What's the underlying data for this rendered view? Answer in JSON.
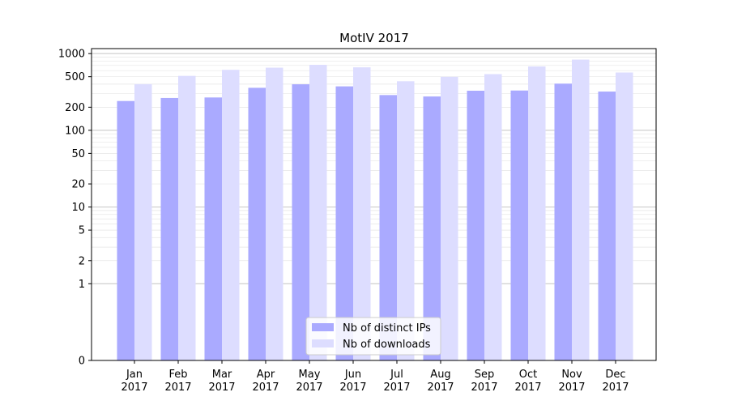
{
  "chart_data": {
    "type": "bar",
    "title": "MotIV 2017",
    "xlabel": "",
    "ylabel": "",
    "y_scale": "symlog",
    "y_ticks": [
      0,
      1,
      2,
      5,
      10,
      20,
      50,
      100,
      200,
      500,
      1000
    ],
    "y_tick_labels": [
      "0",
      "1",
      "2",
      "5",
      "10",
      "20",
      "50",
      "100",
      "200",
      "500",
      "1000"
    ],
    "categories": [
      "Jan\n2017",
      "Feb\n2017",
      "Mar\n2017",
      "Apr\n2017",
      "May\n2017",
      "Jun\n2017",
      "Jul\n2017",
      "Aug\n2017",
      "Sep\n2017",
      "Oct\n2017",
      "Nov\n2017",
      "Dec\n2017"
    ],
    "series": [
      {
        "name": "Nb of distinct IPs",
        "color": "#aaaaff",
        "values": [
          241,
          264,
          268,
          358,
          398,
          374,
          288,
          276,
          328,
          330,
          406,
          320
        ]
      },
      {
        "name": "Nb of downloads",
        "color": "#ddddff",
        "values": [
          400,
          512,
          614,
          655,
          714,
          662,
          436,
          498,
          540,
          679,
          835,
          567
        ]
      }
    ],
    "grid": true,
    "legend_position": "lower-center"
  }
}
